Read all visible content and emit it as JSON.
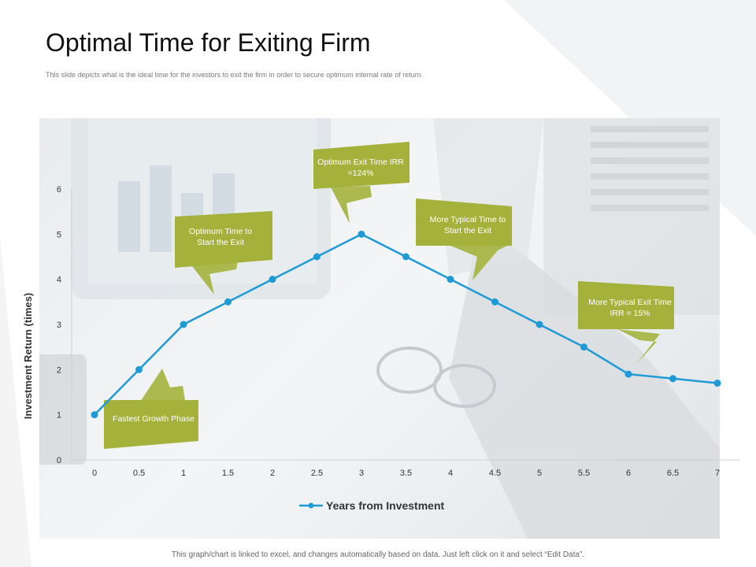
{
  "slide": {
    "title": "Optimal Time for Exiting Firm",
    "subtitle": "This slide depicts what is the ideal time  for the investors to exit the firm in order to secure optimum internal rate of return.",
    "footnote": "This graph/chart is linked to excel,  and changes automatically based on data. Just left click on it and select “Edit Data”."
  },
  "colors": {
    "line": "#1e9bd7",
    "callout": "#a4b23c",
    "callout_text": "#ffffff"
  },
  "chart_data": {
    "type": "line",
    "x": [
      0,
      0.5,
      1,
      1.5,
      2,
      2.5,
      3,
      3.5,
      4,
      4.5,
      5,
      5.5,
      6,
      6.5,
      7
    ],
    "x_tick_labels": [
      "0",
      "0.5",
      "1",
      "1.5",
      "2",
      "2.5",
      "3",
      "3.5",
      "4",
      "4.5",
      "5",
      "5.5",
      "6",
      "6.5",
      "7"
    ],
    "series": [
      {
        "name": "Years from Investment",
        "values": [
          1,
          2,
          3,
          3.5,
          4,
          4.5,
          5,
          4.5,
          4,
          3.5,
          3,
          2.5,
          1.9,
          1.8,
          1.7
        ]
      }
    ],
    "ylabel": "Investment Return (times)",
    "xlabel": "",
    "ylim": [
      0,
      6
    ],
    "y_ticks": [
      "0",
      "1",
      "2",
      "3",
      "4",
      "5",
      "6"
    ],
    "legend_position": "bottom",
    "grid": false,
    "annotations": [
      {
        "id": "fastest-growth",
        "text": "Fastest Growth Phase",
        "points_to": [
          0.5,
          2
        ]
      },
      {
        "id": "optimum-start",
        "text": "Optimum Time to Start the Exit",
        "points_to": [
          1.75,
          3.75
        ]
      },
      {
        "id": "optimum-exit",
        "text": "Optimum Exit Time IRR =124%",
        "points_to": [
          3,
          5
        ]
      },
      {
        "id": "typical-start",
        "text": "More Typical Time to Start the Exit",
        "points_to": [
          4.3,
          3.7
        ]
      },
      {
        "id": "typical-exit",
        "text": "More Typical Exit Time IRR = 15%",
        "points_to": [
          6.1,
          1.9
        ]
      }
    ]
  }
}
